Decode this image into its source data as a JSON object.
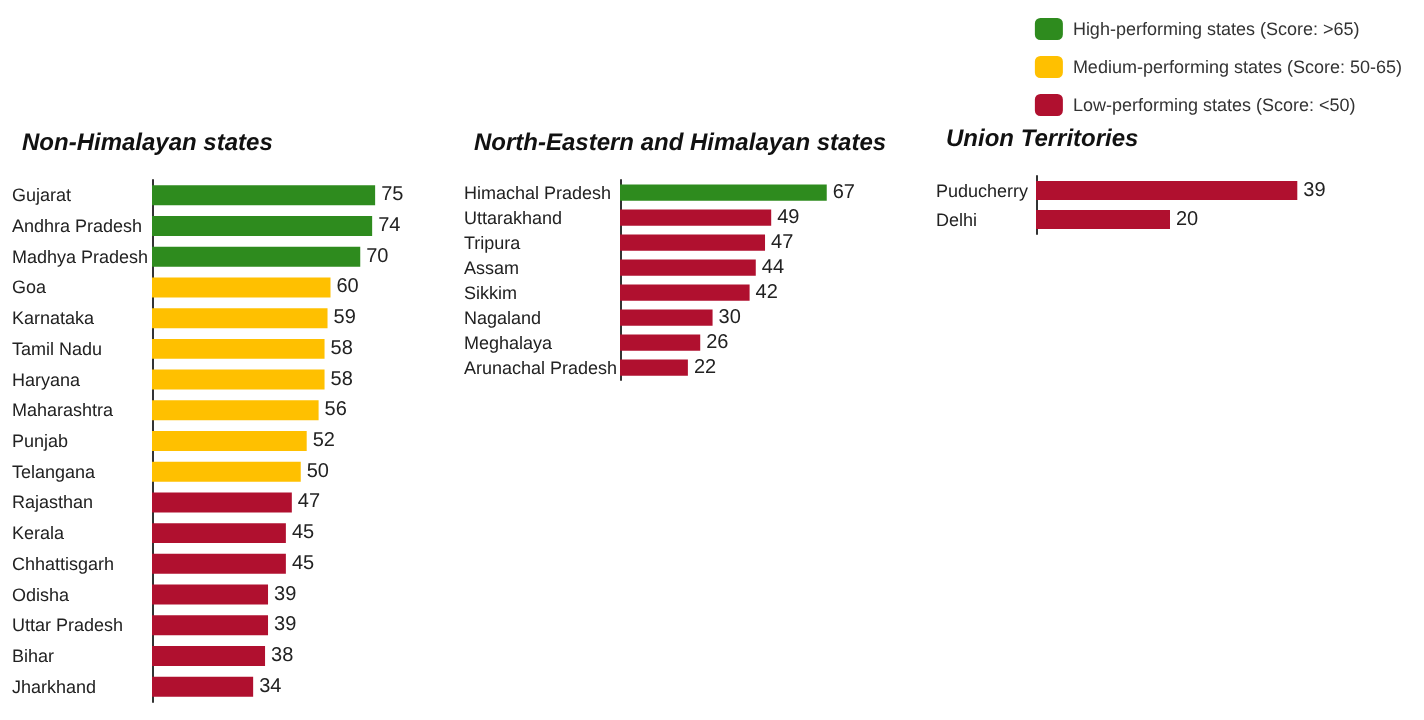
{
  "chart_data": [
    {
      "type": "bar",
      "orientation": "horizontal",
      "title": "Non-Himalayan states",
      "categories": [
        "Gujarat",
        "Andhra Pradesh",
        "Madhya Pradesh",
        "Goa",
        "Karnataka",
        "Tamil Nadu",
        "Haryana",
        "Maharashtra",
        "Punjab",
        "Telangana",
        "Rajasthan",
        "Kerala",
        "Chhattisgarh",
        "Odisha",
        "Uttar Pradesh",
        "Bihar",
        "Jharkhand"
      ],
      "values": [
        75,
        74,
        70,
        60,
        59,
        58,
        58,
        56,
        52,
        50,
        47,
        45,
        45,
        39,
        39,
        38,
        34
      ],
      "colors": [
        "#2e8b1e",
        "#2e8b1e",
        "#2e8b1e",
        "#ffc000",
        "#ffc000",
        "#ffc000",
        "#ffc000",
        "#ffc000",
        "#ffc000",
        "#ffc000",
        "#b0102f",
        "#b0102f",
        "#b0102f",
        "#b0102f",
        "#b0102f",
        "#b0102f",
        "#b0102f"
      ],
      "data_labels": true,
      "tick_labels": "y",
      "grid": false,
      "legend": false
    },
    {
      "type": "bar",
      "orientation": "horizontal",
      "title": "North-Eastern and Himalayan states",
      "categories": [
        "Himachal Pradesh",
        "Uttarakhand",
        "Tripura",
        "Assam",
        "Sikkim",
        "Nagaland",
        "Meghalaya",
        "Arunachal Pradesh"
      ],
      "values": [
        67,
        49,
        47,
        44,
        42,
        30,
        26,
        22
      ],
      "colors": [
        "#2e8b1e",
        "#b0102f",
        "#b0102f",
        "#b0102f",
        "#b0102f",
        "#b0102f",
        "#b0102f",
        "#b0102f"
      ],
      "data_labels": true,
      "tick_labels": "y",
      "grid": false,
      "legend": false
    },
    {
      "type": "bar",
      "orientation": "horizontal",
      "stacked": true,
      "title": "Union Territories",
      "categories": [
        "Puducherry",
        "Delhi"
      ],
      "series": [
        {
          "name": "High-performing states (Score: >65)",
          "color": "#2e8b1e",
          "values": [
            null,
            null
          ]
        },
        {
          "name": "Medium-performing states (Score: 50-65)",
          "color": "#ffc000",
          "values": [
            null,
            null
          ]
        },
        {
          "name": "Low-performing states (Score: <50)",
          "color": "#b0102f",
          "values": [
            39,
            20
          ]
        }
      ],
      "data_labels": true,
      "tick_labels": "y",
      "grid": false,
      "legend": "top right"
    }
  ]
}
